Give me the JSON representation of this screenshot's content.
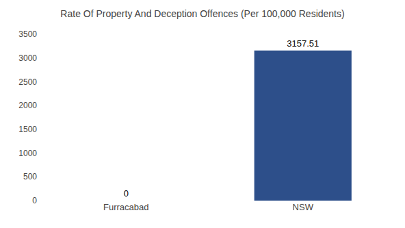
{
  "chart_data": {
    "type": "bar",
    "title": "Rate Of Property And Deception Offences (Per 100,000 Residents)",
    "categories": [
      "Furracabad",
      "NSW"
    ],
    "values": [
      0,
      3157.51
    ],
    "color": "#2d4f8a",
    "ylim": [
      0,
      3500
    ],
    "yticks": [
      0,
      500,
      1000,
      1500,
      2000,
      2500,
      3000,
      3500
    ],
    "grid": false,
    "data_labels": true
  }
}
